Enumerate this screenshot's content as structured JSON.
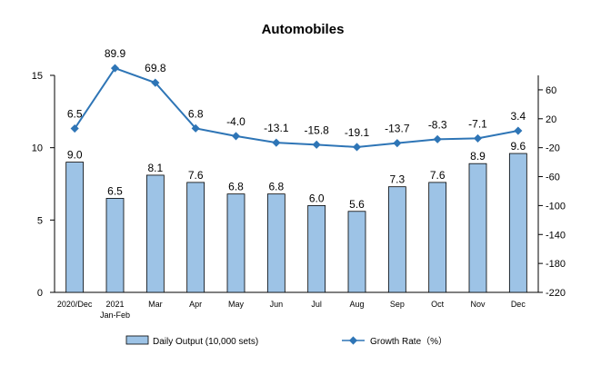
{
  "chart_data": {
    "type": "bar",
    "title": "Automobiles",
    "categories": [
      "2020/Dec",
      [
        "2021",
        "Jan-Feb"
      ],
      "Mar",
      "Apr",
      "May",
      "Jun",
      "Jul",
      "Aug",
      "Sep",
      "Oct",
      "Nov",
      "Dec"
    ],
    "series": [
      {
        "name": "Daily Output (10,000 sets)",
        "type": "bar",
        "axis": "left",
        "color": "#9DC3E6",
        "values": [
          9.0,
          6.5,
          8.1,
          7.6,
          6.8,
          6.8,
          6.0,
          5.6,
          7.3,
          7.6,
          8.9,
          9.6
        ],
        "labels": [
          "9.0",
          "6.5",
          "8.1",
          "7.6",
          "6.8",
          "6.8",
          "6.0",
          "5.6",
          "7.3",
          "7.6",
          "8.9",
          "9.6"
        ]
      },
      {
        "name": "Growth Rate（%）",
        "type": "line",
        "axis": "right",
        "color": "#2E75B6",
        "values": [
          6.5,
          89.9,
          69.8,
          6.8,
          -4.0,
          -13.1,
          -15.8,
          -19.1,
          -13.7,
          -8.3,
          -7.1,
          3.4
        ],
        "labels": [
          "6.5",
          "89.9",
          "69.8",
          "6.8",
          "-4.0",
          "-13.1",
          "-15.8",
          "-19.1",
          "-13.7",
          "-8.3",
          "-7.1",
          "3.4"
        ]
      }
    ],
    "y_left": {
      "lim": [
        0,
        15
      ],
      "ticks": [
        0,
        5,
        10,
        15
      ]
    },
    "y_right": {
      "lim": [
        -220,
        80
      ],
      "ticks": [
        -220,
        -180,
        -140,
        -100,
        -60,
        -20,
        20,
        60
      ]
    },
    "grid": false,
    "legend_position": "bottom"
  }
}
